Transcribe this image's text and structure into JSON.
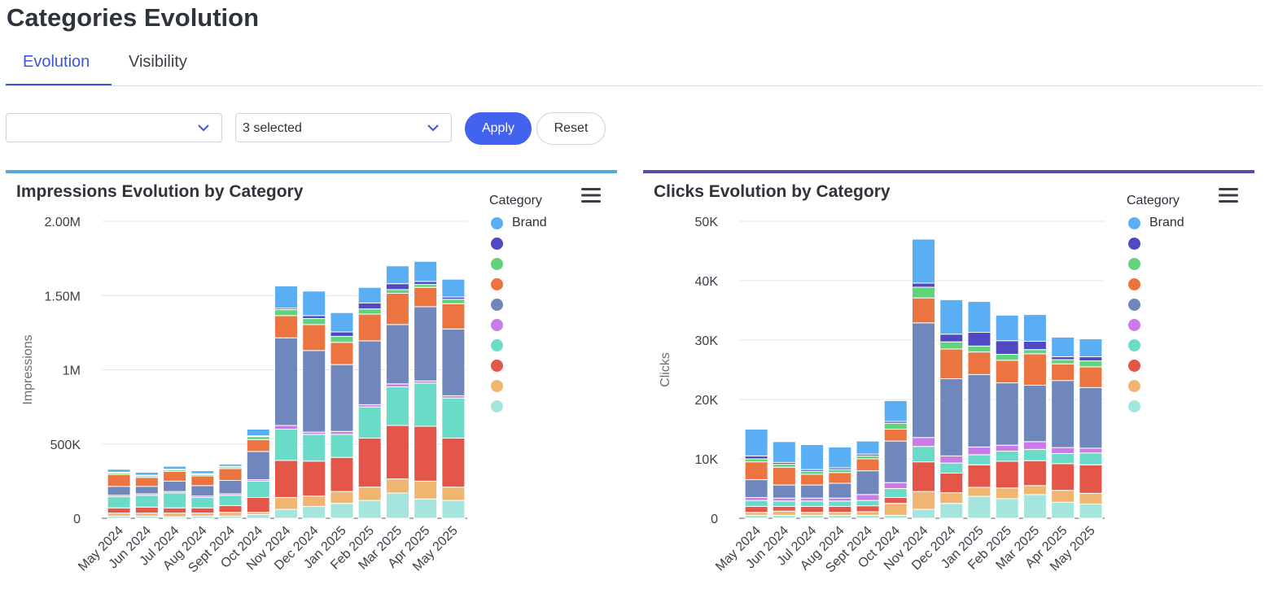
{
  "page": {
    "title": "Categories Evolution"
  },
  "tabs": [
    {
      "label": "Evolution",
      "active": true
    },
    {
      "label": "Visibility",
      "active": false
    }
  ],
  "filters": {
    "first_select": {
      "value": ""
    },
    "second_select": {
      "value": "3 selected"
    },
    "apply_label": "Apply",
    "reset_label": "Reset"
  },
  "colors": {
    "accent": "#4262f0",
    "impressions_bar": "#4fa9dc",
    "clicks_bar": "#5a4aa8",
    "categories": [
      "#5aaef4",
      "#5148c3",
      "#5fd47a",
      "#ec7440",
      "#6f87bd",
      "#c97be8",
      "#69dbc7",
      "#e4564a",
      "#f1b572",
      "#a4e6de"
    ]
  },
  "legend": {
    "title": "Category",
    "items": [
      "Brand",
      "",
      "",
      "",
      "",
      "",
      "",
      "",
      "",
      ""
    ]
  },
  "chart_data": [
    {
      "type": "bar",
      "stacked": true,
      "title": "Impressions Evolution by Category",
      "ylabel": "Impressions",
      "xlabel": "",
      "ylim": [
        0,
        2000000
      ],
      "yticks": [
        0,
        500000,
        1000000,
        1500000,
        2000000
      ],
      "ytick_labels": [
        "0",
        "500K",
        "1M",
        "1.50M",
        "2.00M"
      ],
      "grid": true,
      "legend_position": "right",
      "categories": [
        "May 2024",
        "Jun 2024",
        "Jul 2024",
        "Aug 2024",
        "Sept 2024",
        "Oct 2024",
        "Nov 2024",
        "Dec 2024",
        "Jan 2025",
        "Feb 2025",
        "Mar 2025",
        "Apr 2025",
        "May 2025"
      ],
      "series": [
        {
          "name": "",
          "values": [
            15000,
            15000,
            10000,
            15000,
            15000,
            25000,
            60000,
            80000,
            100000,
            120000,
            170000,
            130000,
            120000
          ]
        },
        {
          "name": "",
          "values": [
            20000,
            20000,
            25000,
            20000,
            25000,
            15000,
            80000,
            70000,
            80000,
            90000,
            95000,
            120000,
            90000
          ]
        },
        {
          "name": "",
          "values": [
            35000,
            40000,
            35000,
            35000,
            45000,
            100000,
            250000,
            235000,
            230000,
            330000,
            360000,
            370000,
            330000
          ]
        },
        {
          "name": "",
          "values": [
            75000,
            80000,
            100000,
            70000,
            70000,
            110000,
            210000,
            180000,
            155000,
            210000,
            260000,
            290000,
            270000
          ]
        },
        {
          "name": "",
          "values": [
            10000,
            10000,
            10000,
            10000,
            10000,
            10000,
            25000,
            15000,
            20000,
            15000,
            20000,
            15000,
            15000
          ]
        },
        {
          "name": "",
          "values": [
            60000,
            50000,
            70000,
            70000,
            90000,
            190000,
            590000,
            550000,
            450000,
            430000,
            400000,
            500000,
            450000
          ]
        },
        {
          "name": "",
          "values": [
            80000,
            60000,
            65000,
            65000,
            80000,
            80000,
            150000,
            175000,
            150000,
            180000,
            210000,
            130000,
            170000
          ]
        },
        {
          "name": "",
          "values": [
            10000,
            10000,
            10000,
            10000,
            10000,
            20000,
            40000,
            40000,
            40000,
            35000,
            25000,
            20000,
            30000
          ]
        },
        {
          "name": "",
          "values": [
            5000,
            5000,
            5000,
            5000,
            5000,
            5000,
            10000,
            20000,
            30000,
            40000,
            40000,
            20000,
            15000
          ]
        },
        {
          "name": "Brand",
          "values": [
            20000,
            20000,
            20000,
            20000,
            15000,
            45000,
            150000,
            165000,
            130000,
            105000,
            120000,
            135000,
            120000
          ]
        }
      ]
    },
    {
      "type": "bar",
      "stacked": true,
      "title": "Clicks Evolution by Category",
      "ylabel": "Clicks",
      "xlabel": "",
      "ylim": [
        0,
        50000
      ],
      "yticks": [
        0,
        10000,
        20000,
        30000,
        40000,
        50000
      ],
      "ytick_labels": [
        "0",
        "10K",
        "20K",
        "30K",
        "40K",
        "50K"
      ],
      "grid": true,
      "legend_position": "right",
      "categories": [
        "May 2024",
        "Jun 2024",
        "Jul 2024",
        "Aug 2024",
        "Sept 2024",
        "Oct 2024",
        "Nov 2024",
        "Dec 2024",
        "Jan 2025",
        "Feb 2025",
        "Mar 2025",
        "Apr 2025",
        "May 2025"
      ],
      "series": [
        {
          "name": "",
          "values": [
            500,
            500,
            500,
            500,
            500,
            500,
            1500,
            2500,
            3700,
            3300,
            4000,
            2700,
            2400
          ]
        },
        {
          "name": "",
          "values": [
            500,
            700,
            500,
            500,
            600,
            2000,
            3000,
            1800,
            1500,
            1800,
            1500,
            2000,
            1800
          ]
        },
        {
          "name": "",
          "values": [
            1000,
            800,
            1000,
            1000,
            1000,
            1000,
            5000,
            3300,
            3800,
            4500,
            4200,
            4500,
            4800
          ]
        },
        {
          "name": "",
          "values": [
            1000,
            900,
            900,
            900,
            900,
            1500,
            2600,
            1700,
            1700,
            1700,
            1900,
            1700,
            2000
          ]
        },
        {
          "name": "",
          "values": [
            500,
            500,
            500,
            500,
            1000,
            1000,
            1500,
            1200,
            1300,
            1000,
            1300,
            1000,
            800
          ]
        },
        {
          "name": "",
          "values": [
            3000,
            2200,
            2200,
            2500,
            4000,
            7000,
            19300,
            13000,
            12200,
            10500,
            9500,
            11300,
            10200
          ]
        },
        {
          "name": "",
          "values": [
            3000,
            3000,
            1800,
            1800,
            2000,
            2000,
            4200,
            5000,
            3800,
            3800,
            5300,
            2800,
            3500
          ]
        },
        {
          "name": "",
          "values": [
            500,
            500,
            500,
            500,
            500,
            1000,
            1800,
            1200,
            1000,
            1000,
            700,
            700,
            1000
          ]
        },
        {
          "name": "",
          "values": [
            500,
            300,
            300,
            300,
            300,
            300,
            700,
            1300,
            2300,
            2300,
            1400,
            500,
            700
          ]
        },
        {
          "name": "Brand",
          "values": [
            4500,
            3500,
            4200,
            3500,
            2200,
            3500,
            7400,
            5800,
            5200,
            4300,
            4500,
            3300,
            3000
          ]
        }
      ]
    }
  ]
}
